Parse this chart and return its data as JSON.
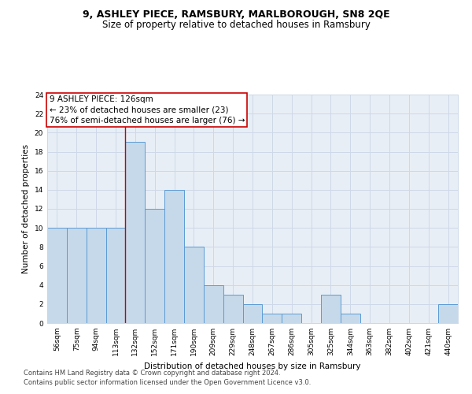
{
  "title": "9, ASHLEY PIECE, RAMSBURY, MARLBOROUGH, SN8 2QE",
  "subtitle": "Size of property relative to detached houses in Ramsbury",
  "xlabel": "Distribution of detached houses by size in Ramsbury",
  "ylabel": "Number of detached properties",
  "categories": [
    "56sqm",
    "75sqm",
    "94sqm",
    "113sqm",
    "132sqm",
    "152sqm",
    "171sqm",
    "190sqm",
    "209sqm",
    "229sqm",
    "248sqm",
    "267sqm",
    "286sqm",
    "305sqm",
    "325sqm",
    "344sqm",
    "363sqm",
    "382sqm",
    "402sqm",
    "421sqm",
    "440sqm"
  ],
  "values": [
    10,
    10,
    10,
    10,
    19,
    12,
    14,
    8,
    4,
    3,
    2,
    1,
    1,
    0,
    3,
    1,
    0,
    0,
    0,
    0,
    2
  ],
  "bar_color": "#c6d9ea",
  "bar_edge_color": "#5b9bd5",
  "annotation_box_text": "9 ASHLEY PIECE: 126sqm\n← 23% of detached houses are smaller (23)\n76% of semi-detached houses are larger (76) →",
  "annotation_box_color": "#ffffff",
  "annotation_box_edge_color": "#cc0000",
  "vline_color": "#cc0000",
  "vline_index": 4,
  "ylim": [
    0,
    24
  ],
  "yticks": [
    0,
    2,
    4,
    6,
    8,
    10,
    12,
    14,
    16,
    18,
    20,
    22,
    24
  ],
  "grid_color": "#cdd8e8",
  "background_color": "#e8eef5",
  "footer_line1": "Contains HM Land Registry data © Crown copyright and database right 2024.",
  "footer_line2": "Contains public sector information licensed under the Open Government Licence v3.0.",
  "title_fontsize": 9,
  "subtitle_fontsize": 8.5,
  "axis_label_fontsize": 7.5,
  "tick_fontsize": 6.5,
  "annotation_fontsize": 7.5,
  "footer_fontsize": 6
}
